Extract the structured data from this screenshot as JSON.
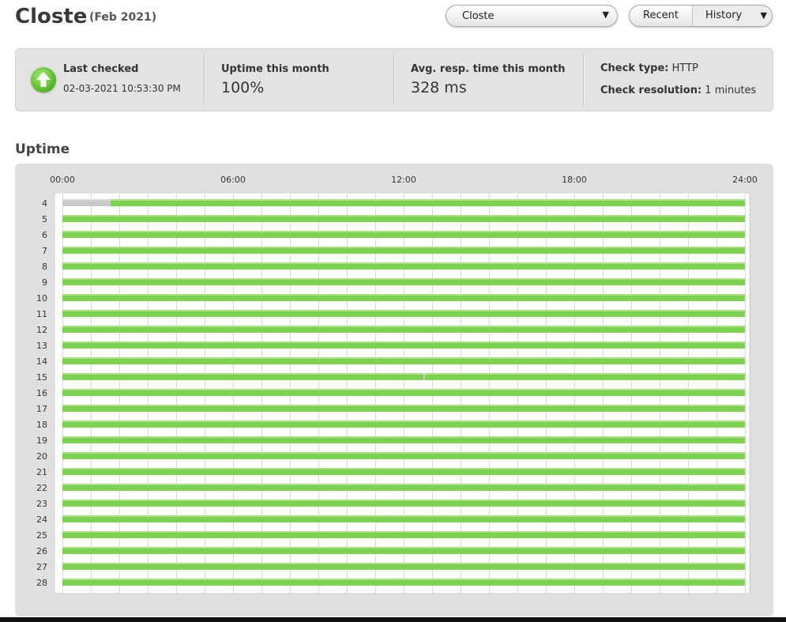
{
  "header": {
    "title": "Closte",
    "subtitle": "(Feb 2021)",
    "monitor_select": {
      "value": "Closte",
      "caret": "▼"
    },
    "view_toggle": {
      "recent_label": "Recent",
      "history_label": "History",
      "caret": "▼",
      "active": "History"
    }
  },
  "stats": {
    "last_checked": {
      "label": "Last checked",
      "value": "02-03-2021 10:53:30 PM",
      "status": "up",
      "status_color": "#4fb524"
    },
    "uptime": {
      "label": "Uptime this month",
      "value": "100%"
    },
    "response": {
      "label": "Avg. resp. time this month",
      "value": "328 ms"
    },
    "check_type": {
      "label": "Check type:",
      "value": "HTTP"
    },
    "check_resolution": {
      "label": "Check resolution:",
      "value": "1 minutes"
    }
  },
  "uptime_section": {
    "title": "Uptime"
  },
  "colors": {
    "up": "#7ed34e",
    "no_data": "#c8c8c8"
  },
  "chart_data": {
    "type": "bar",
    "x_ticks": [
      "00:00",
      "06:00",
      "12:00",
      "18:00",
      "24:00"
    ],
    "xlim": [
      0,
      24
    ],
    "grid": true,
    "days": [
      "4",
      "5",
      "6",
      "7",
      "8",
      "9",
      "10",
      "11",
      "12",
      "13",
      "14",
      "15",
      "16",
      "17",
      "18",
      "19",
      "20",
      "21",
      "22",
      "23",
      "24",
      "25",
      "26",
      "27",
      "28"
    ],
    "series": [
      {
        "day": "4",
        "segments": [
          {
            "start": 0,
            "end": 1.7,
            "state": "no_data"
          },
          {
            "start": 1.7,
            "end": 24,
            "state": "up"
          }
        ]
      },
      {
        "day": "5",
        "segments": [
          {
            "start": 0,
            "end": 24,
            "state": "up"
          }
        ]
      },
      {
        "day": "6",
        "segments": [
          {
            "start": 0,
            "end": 24,
            "state": "up"
          }
        ]
      },
      {
        "day": "7",
        "segments": [
          {
            "start": 0,
            "end": 24,
            "state": "up"
          }
        ]
      },
      {
        "day": "8",
        "segments": [
          {
            "start": 0,
            "end": 24,
            "state": "up"
          }
        ]
      },
      {
        "day": "9",
        "segments": [
          {
            "start": 0,
            "end": 24,
            "state": "up"
          }
        ]
      },
      {
        "day": "10",
        "segments": [
          {
            "start": 0,
            "end": 24,
            "state": "up"
          }
        ]
      },
      {
        "day": "11",
        "segments": [
          {
            "start": 0,
            "end": 24,
            "state": "up"
          }
        ]
      },
      {
        "day": "12",
        "segments": [
          {
            "start": 0,
            "end": 24,
            "state": "up"
          }
        ]
      },
      {
        "day": "13",
        "segments": [
          {
            "start": 0,
            "end": 24,
            "state": "up"
          }
        ]
      },
      {
        "day": "14",
        "segments": [
          {
            "start": 0,
            "end": 24,
            "state": "up"
          }
        ]
      },
      {
        "day": "15",
        "segments": [
          {
            "start": 0,
            "end": 12.7,
            "state": "up"
          },
          {
            "start": 12.7,
            "end": 12.75,
            "state": "no_data"
          },
          {
            "start": 12.75,
            "end": 24,
            "state": "up"
          }
        ]
      },
      {
        "day": "16",
        "segments": [
          {
            "start": 0,
            "end": 24,
            "state": "up"
          }
        ]
      },
      {
        "day": "17",
        "segments": [
          {
            "start": 0,
            "end": 24,
            "state": "up"
          }
        ]
      },
      {
        "day": "18",
        "segments": [
          {
            "start": 0,
            "end": 24,
            "state": "up"
          }
        ]
      },
      {
        "day": "19",
        "segments": [
          {
            "start": 0,
            "end": 24,
            "state": "up"
          }
        ]
      },
      {
        "day": "20",
        "segments": [
          {
            "start": 0,
            "end": 24,
            "state": "up"
          }
        ]
      },
      {
        "day": "21",
        "segments": [
          {
            "start": 0,
            "end": 24,
            "state": "up"
          }
        ]
      },
      {
        "day": "22",
        "segments": [
          {
            "start": 0,
            "end": 24,
            "state": "up"
          }
        ]
      },
      {
        "day": "23",
        "segments": [
          {
            "start": 0,
            "end": 24,
            "state": "up"
          }
        ]
      },
      {
        "day": "24",
        "segments": [
          {
            "start": 0,
            "end": 24,
            "state": "up"
          }
        ]
      },
      {
        "day": "25",
        "segments": [
          {
            "start": 0,
            "end": 24,
            "state": "up"
          }
        ]
      },
      {
        "day": "26",
        "segments": [
          {
            "start": 0,
            "end": 24,
            "state": "up"
          }
        ]
      },
      {
        "day": "27",
        "segments": [
          {
            "start": 0,
            "end": 24,
            "state": "up"
          }
        ]
      },
      {
        "day": "28",
        "segments": [
          {
            "start": 0,
            "end": 24,
            "state": "up"
          }
        ]
      }
    ]
  }
}
